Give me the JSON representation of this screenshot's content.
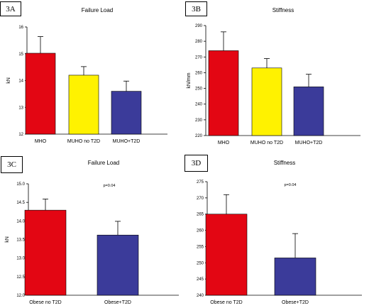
{
  "chart_data": [
    {
      "panel_label": "3A",
      "type": "bar",
      "title": "Failure Load",
      "ylabel": "kN",
      "xlabel": "",
      "categories": [
        "MHO",
        "MUHO no T2D",
        "MUHO+T2D"
      ],
      "values": [
        15.02,
        14.2,
        13.6
      ],
      "errors": [
        0.62,
        0.32,
        0.38
      ],
      "colors": [
        "#e30613",
        "#fff200",
        "#3b3b9a"
      ],
      "ylim": [
        12,
        16
      ],
      "yticks": [
        "12",
        "13",
        "14",
        "15",
        "16"
      ],
      "annotation": "",
      "grid": false
    },
    {
      "panel_label": "3B",
      "type": "bar",
      "title": "Stiffness",
      "ylabel": "kN/mm",
      "xlabel": "",
      "categories": [
        "MHO",
        "MUHO no T2D",
        "MUHO+T2D"
      ],
      "values": [
        274,
        263,
        251
      ],
      "errors": [
        12,
        6,
        8
      ],
      "colors": [
        "#e30613",
        "#fff200",
        "#3b3b9a"
      ],
      "ylim": [
        220,
        290
      ],
      "yticks": [
        "220",
        "230",
        "240",
        "250",
        "260",
        "270",
        "280",
        "290"
      ],
      "annotation": "",
      "grid": false
    },
    {
      "panel_label": "3C",
      "type": "bar",
      "title": "Failure Load",
      "ylabel": "kN",
      "xlabel": "",
      "categories": [
        "Obese no T2D",
        "Obese+T2D"
      ],
      "values": [
        14.29,
        13.62
      ],
      "errors": [
        0.3,
        0.37
      ],
      "colors": [
        "#e30613",
        "#3b3b9a"
      ],
      "ylim": [
        12.0,
        15.0
      ],
      "yticks": [
        "12.0",
        "12.5",
        "13.0",
        "13.5",
        "14.0",
        "14.5",
        "15.0"
      ],
      "annotation": "p=0.04",
      "grid": false
    },
    {
      "panel_label": "3D",
      "type": "bar",
      "title": "Stiffness",
      "ylabel": "",
      "xlabel": "",
      "categories": [
        "Obese no T2D",
        "Obese+T2D"
      ],
      "values": [
        265,
        251.5
      ],
      "errors": [
        6,
        7.5
      ],
      "colors": [
        "#e30613",
        "#3b3b9a"
      ],
      "ylim": [
        240,
        275
      ],
      "yticks": [
        "240",
        "245",
        "250",
        "255",
        "260",
        "265",
        "270",
        "275"
      ],
      "annotation": "p=0.04",
      "grid": false
    }
  ]
}
